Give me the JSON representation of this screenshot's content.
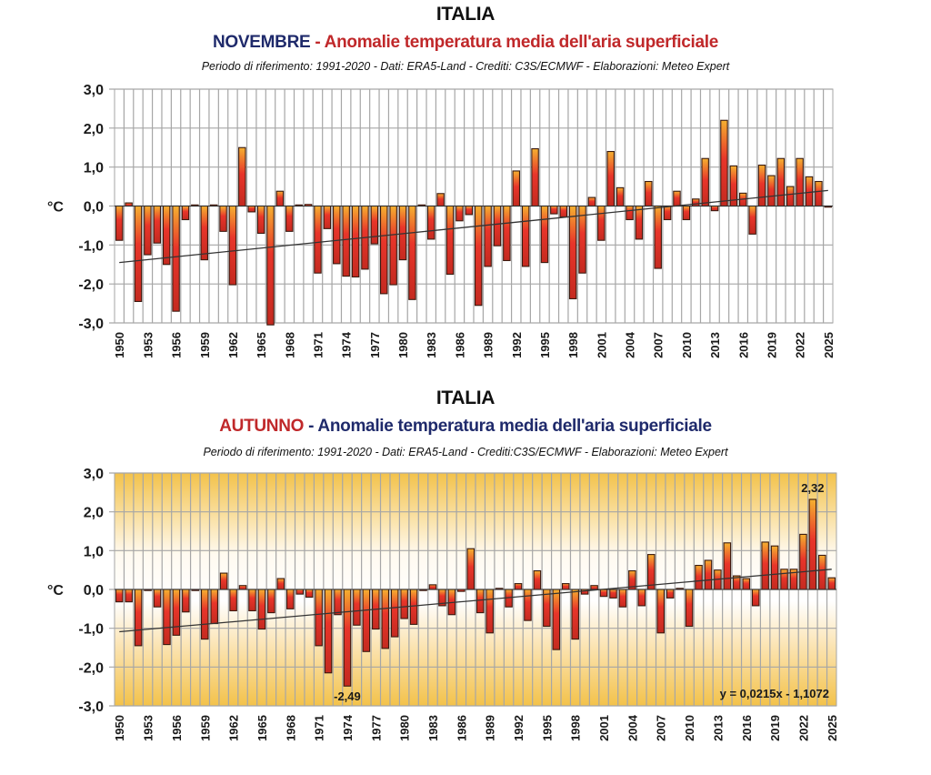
{
  "chart_data": [
    {
      "type": "bar",
      "id": "novembre",
      "title": "ITALIA",
      "subtitle_prefix": "NOVEMBRE",
      "subtitle_rest": "- Anomalie temperatura media dell'aria superficiale",
      "subtitle_prefix_color": "#1f2a6b",
      "subtitle_rest_color": "#c0282a",
      "note": "Periodo di riferimento: 1991-2020 - Dati: ERA5-Land - Crediti: C3S/ECMWF - Elaborazioni: Meteo Expert",
      "ylabel": "°C",
      "xlabel": "",
      "ylim": [
        -3.0,
        3.0
      ],
      "yticks": [
        "3,0",
        "2,0",
        "1,0",
        "0,0",
        "-1,0",
        "-2,0",
        "-3,0"
      ],
      "grid": true,
      "background": "white",
      "x_start": 1950,
      "xtick_labels": [
        "1950",
        "1953",
        "1956",
        "1959",
        "1962",
        "1965",
        "1968",
        "1971",
        "1974",
        "1977",
        "1980",
        "1983",
        "1986",
        "1989",
        "1992",
        "1995",
        "1998",
        "2001",
        "2004",
        "2007",
        "2010",
        "2013",
        "2016",
        "2019",
        "2022",
        "2025"
      ],
      "categories": [
        "1950",
        "1951",
        "1952",
        "1953",
        "1954",
        "1955",
        "1956",
        "1957",
        "1958",
        "1959",
        "1960",
        "1961",
        "1962",
        "1963",
        "1964",
        "1965",
        "1966",
        "1967",
        "1968",
        "1969",
        "1970",
        "1971",
        "1972",
        "1973",
        "1974",
        "1975",
        "1976",
        "1977",
        "1978",
        "1979",
        "1980",
        "1981",
        "1982",
        "1983",
        "1984",
        "1985",
        "1986",
        "1987",
        "1988",
        "1989",
        "1990",
        "1991",
        "1992",
        "1993",
        "1994",
        "1995",
        "1996",
        "1997",
        "1998",
        "1999",
        "2000",
        "2001",
        "2002",
        "2003",
        "2004",
        "2005",
        "2006",
        "2007",
        "2008",
        "2009",
        "2010",
        "2011",
        "2012",
        "2013",
        "2014",
        "2015",
        "2016",
        "2017",
        "2018",
        "2019",
        "2020",
        "2021",
        "2022",
        "2023",
        "2024",
        "2025"
      ],
      "values": [
        -0.88,
        0.08,
        -2.45,
        -1.25,
        -0.95,
        -1.5,
        -2.7,
        -0.35,
        0.02,
        -1.38,
        0.02,
        -0.65,
        -2.02,
        1.5,
        -0.15,
        -0.7,
        -3.05,
        0.38,
        -0.65,
        0.0,
        0.04,
        -1.72,
        -0.58,
        -1.48,
        -1.8,
        -1.82,
        -1.62,
        -0.97,
        -2.25,
        -2.02,
        -1.38,
        -2.4,
        0.0,
        -0.85,
        0.32,
        -1.75,
        -0.38,
        -0.22,
        -2.55,
        -1.55,
        -1.02,
        -1.4,
        0.9,
        -1.55,
        1.47,
        -1.45,
        -0.2,
        -0.28,
        -2.38,
        -1.72,
        0.22,
        -0.88,
        1.4,
        0.47,
        -0.35,
        -0.85,
        0.63,
        -1.6,
        -0.35,
        0.38,
        -0.35,
        0.18,
        1.22,
        -0.12,
        2.2,
        1.03,
        0.33,
        -0.72,
        1.05,
        0.78,
        1.22,
        0.5,
        1.22,
        0.75,
        0.63,
        -0.02
      ],
      "trendline": {
        "from": [
          1950,
          -1.45
        ],
        "to": [
          2025,
          0.4
        ]
      },
      "annotations": []
    },
    {
      "type": "bar",
      "id": "autunno",
      "title": "ITALIA",
      "subtitle_prefix": "AUTUNNO",
      "subtitle_rest": "- Anomalie temperatura media dell'aria superficiale",
      "subtitle_prefix_color": "#c0282a",
      "subtitle_rest_color": "#1f2a6b",
      "note": "Periodo di riferimento: 1991-2020 - Dati: ERA5-Land - Crediti:C3S/ECMWF - Elaborazioni: Meteo Expert",
      "ylabel": "°C",
      "xlabel": "",
      "ylim": [
        -3.0,
        3.0
      ],
      "yticks": [
        "3,0",
        "2,0",
        "1,0",
        "0,0",
        "-1,0",
        "-2,0",
        "-3,0"
      ],
      "grid": true,
      "background": "yellow-white-gradient",
      "x_start": 1950,
      "xtick_labels": [
        "1950",
        "1953",
        "1956",
        "1959",
        "1962",
        "1965",
        "1968",
        "1971",
        "1974",
        "1977",
        "1980",
        "1983",
        "1986",
        "1989",
        "1992",
        "1995",
        "1998",
        "2001",
        "2004",
        "2007",
        "2010",
        "2013",
        "2016",
        "2019",
        "2022",
        "2025"
      ],
      "categories": [
        "1950",
        "1951",
        "1952",
        "1953",
        "1954",
        "1955",
        "1956",
        "1957",
        "1958",
        "1959",
        "1960",
        "1961",
        "1962",
        "1963",
        "1964",
        "1965",
        "1966",
        "1967",
        "1968",
        "1969",
        "1970",
        "1971",
        "1972",
        "1973",
        "1974",
        "1975",
        "1976",
        "1977",
        "1978",
        "1979",
        "1980",
        "1981",
        "1982",
        "1983",
        "1984",
        "1985",
        "1986",
        "1987",
        "1988",
        "1989",
        "1990",
        "1991",
        "1992",
        "1993",
        "1994",
        "1995",
        "1996",
        "1997",
        "1998",
        "1999",
        "2000",
        "2001",
        "2002",
        "2003",
        "2004",
        "2005",
        "2006",
        "2007",
        "2008",
        "2009",
        "2010",
        "2011",
        "2012",
        "2013",
        "2014",
        "2015",
        "2016",
        "2017",
        "2018",
        "2019",
        "2020",
        "2021",
        "2022",
        "2023",
        "2024",
        "2025"
      ],
      "values": [
        -0.32,
        -0.32,
        -1.45,
        -0.02,
        -0.45,
        -1.42,
        -1.18,
        -0.58,
        -0.02,
        -1.28,
        -0.88,
        0.42,
        -0.55,
        0.1,
        -0.55,
        -1.02,
        -0.6,
        0.28,
        -0.5,
        -0.12,
        -0.2,
        -1.45,
        -2.15,
        -0.65,
        -2.49,
        -0.92,
        -1.6,
        -1.02,
        -1.52,
        -1.22,
        -0.75,
        -0.9,
        -0.02,
        0.12,
        -0.42,
        -0.65,
        -0.05,
        1.05,
        -0.6,
        -1.12,
        0.0,
        -0.45,
        0.15,
        -0.8,
        0.48,
        -0.95,
        -1.55,
        0.15,
        -1.28,
        -0.12,
        0.1,
        -0.18,
        -0.22,
        -0.45,
        0.48,
        -0.42,
        0.9,
        -1.12,
        -0.22,
        0.0,
        -0.95,
        0.62,
        0.75,
        0.5,
        1.2,
        0.35,
        0.28,
        -0.42,
        1.22,
        1.12,
        0.52,
        0.52,
        1.42,
        2.32,
        0.88,
        0.3
      ],
      "trendline": {
        "from": [
          1950,
          -1.09
        ],
        "to": [
          2025,
          0.52
        ]
      },
      "trend_equation": "y = 0,0215x - 1,1072",
      "annotations": [
        {
          "year": "1974",
          "label": "-2,49",
          "position": "below"
        },
        {
          "year": "2023",
          "label": "2,32",
          "position": "above"
        }
      ]
    }
  ]
}
